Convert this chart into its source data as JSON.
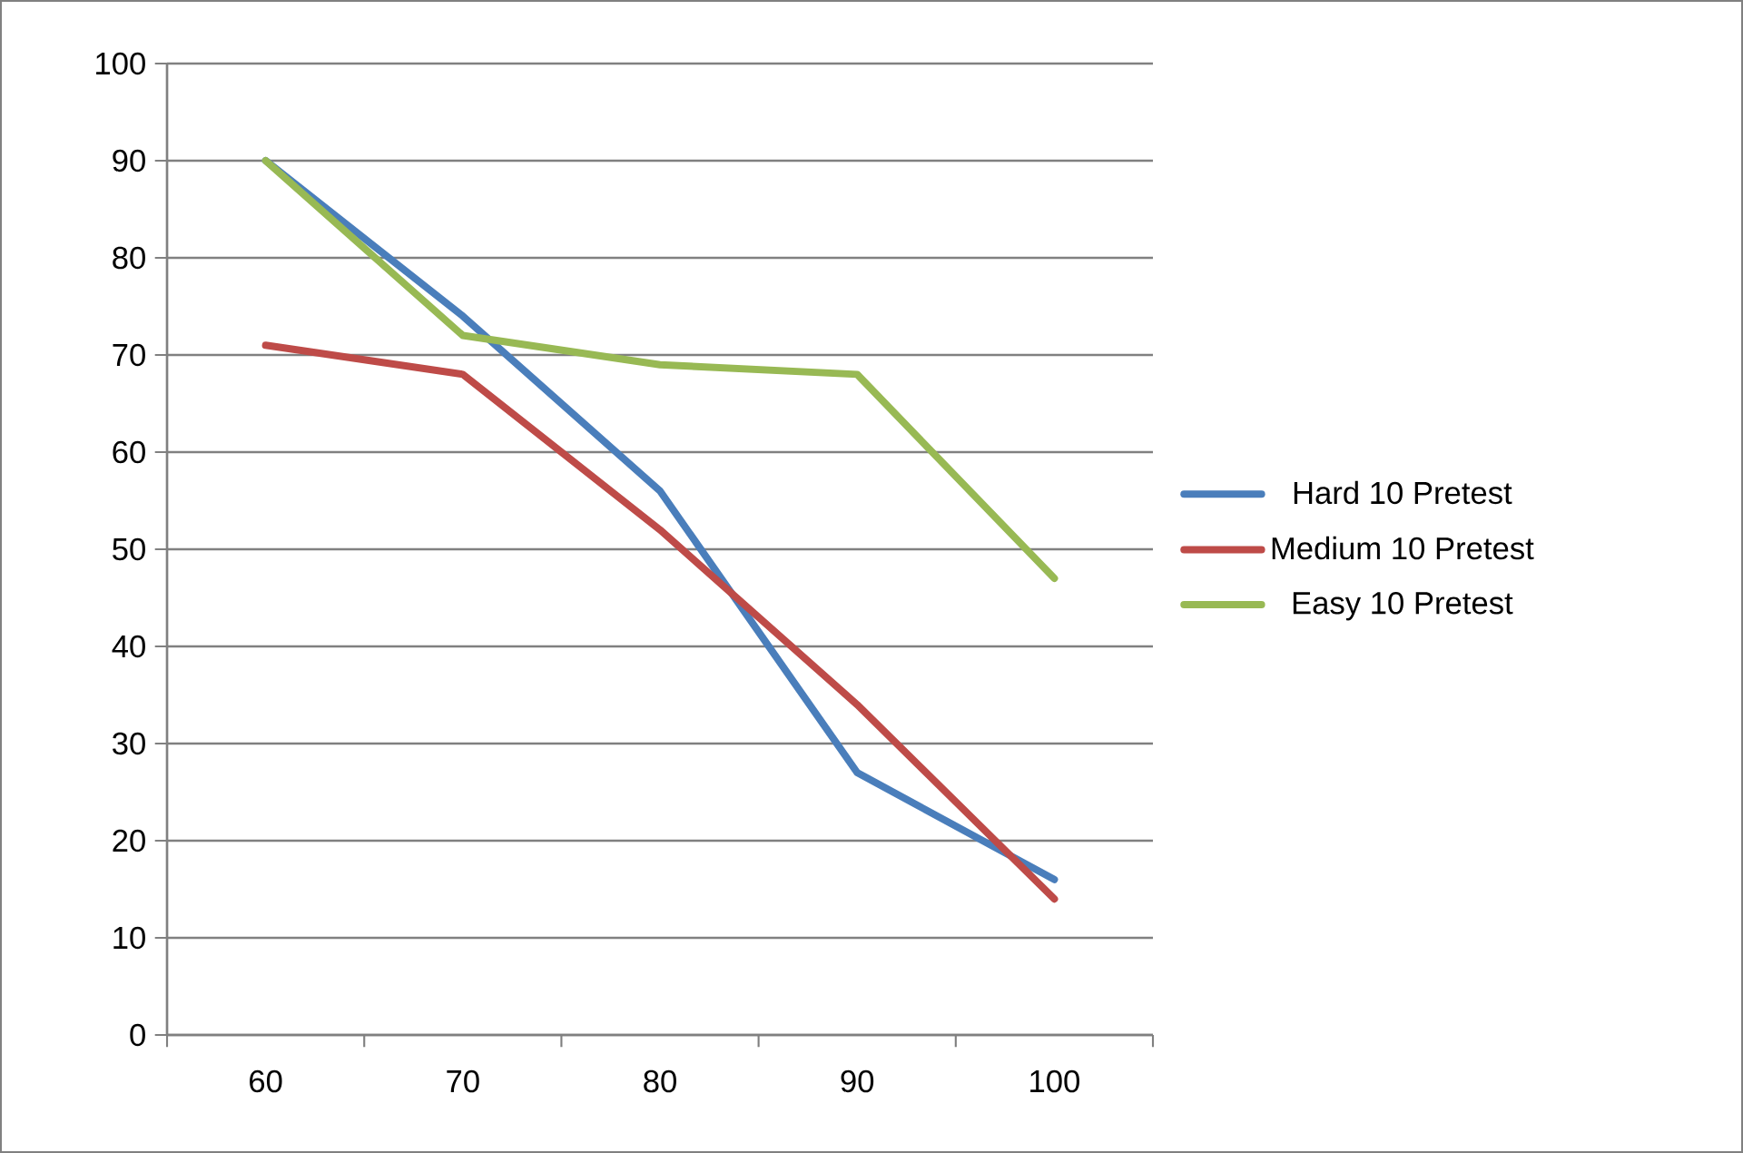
{
  "chart_data": {
    "type": "line",
    "categories": [
      "60",
      "70",
      "80",
      "90",
      "100"
    ],
    "series": [
      {
        "name": "Hard 10 Pretest",
        "color": "#4a7ebb",
        "values": [
          90,
          74,
          56,
          27,
          16
        ]
      },
      {
        "name": "Medium 10 Pretest",
        "color": "#be4b48",
        "values": [
          71,
          68,
          52,
          34,
          14
        ]
      },
      {
        "name": "Easy 10 Pretest",
        "color": "#98b954",
        "values": [
          90,
          72,
          69,
          68,
          47
        ]
      }
    ],
    "ylim": [
      0,
      100
    ],
    "yticks": [
      0,
      10,
      20,
      30,
      40,
      50,
      60,
      70,
      80,
      90,
      100
    ],
    "grid": "y",
    "legend": "right",
    "marker": "none",
    "line_style": "solid"
  }
}
